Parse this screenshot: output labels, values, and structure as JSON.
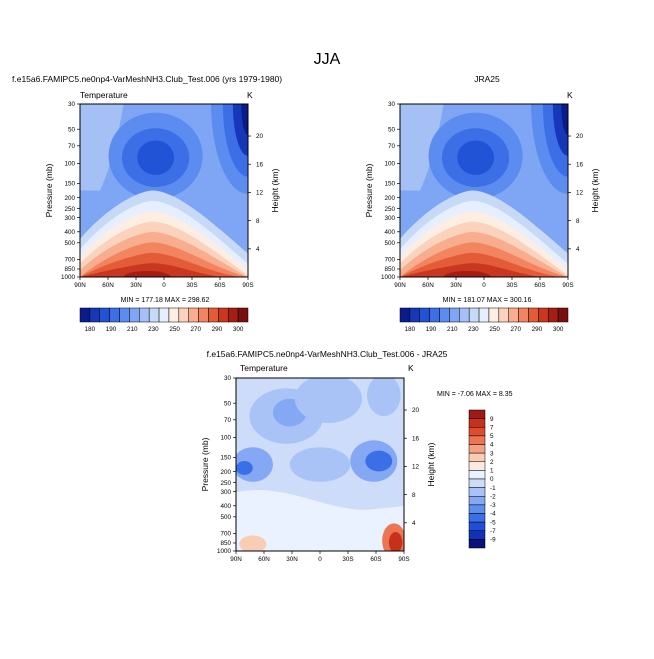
{
  "figure_title": "JJA",
  "colors": {
    "frame": "#000000",
    "background": "#ffffff",
    "abs_palette": [
      "#0a1c8c",
      "#1637b8",
      "#2153d6",
      "#3c6fe6",
      "#5c8cf0",
      "#7fa6f4",
      "#a4c0f5",
      "#c8d9f8",
      "#e6efff",
      "#fdeee4",
      "#fbd3bd",
      "#f8ad8f",
      "#f2855f",
      "#e35b37",
      "#c9381e",
      "#a51e16",
      "#7b0f0c"
    ],
    "diff_palette": [
      "#08127a",
      "#1231b6",
      "#1f4fd6",
      "#3a6fe8",
      "#5e8df0",
      "#84a8f4",
      "#a9c3f7",
      "#cddcf8",
      "#eaf1ff",
      "#fde9df",
      "#f9cdb4",
      "#f4a184",
      "#ec7553",
      "#de4c2e",
      "#c5311b",
      "#a01914"
    ]
  },
  "charts": {
    "left": {
      "left_string": "f.e15a6.FAMIPC5.ne0np4-VarMeshNH3.Club_Test.006 (yrs 1979-1980)",
      "var_label": "Temperature",
      "units": "K",
      "stats": "MIN = 177.18  MAX = 298.62"
    },
    "right": {
      "center_string": "JRA25",
      "var_label": "",
      "units": "K",
      "stats": "MIN = 181.07  MAX = 300.16"
    },
    "diff": {
      "center_string": "f.e15a6.FAMIPC5.ne0np4-VarMeshNH3.Club_Test.006 - JRA25",
      "var_label": "Temperature",
      "units": "K",
      "stats": "MIN = -7.06  MAX =  8.35"
    }
  },
  "chart_data": [
    {
      "type": "heatmap",
      "title": "f.e15a6.FAMIPC5.ne0np4-VarMeshNH3.Club_Test.006 (yrs 1979-1980)",
      "subtitle": "Temperature",
      "units": "K",
      "xlabel": "",
      "ylabel": "Pressure (mb)",
      "ylabel_right": "Height (km)",
      "x_ticks": [
        "90N",
        "60N",
        "30N",
        "0",
        "30S",
        "60S",
        "90S"
      ],
      "y_ticks": [
        30,
        50,
        70,
        100,
        150,
        200,
        250,
        300,
        400,
        500,
        700,
        850,
        1000
      ],
      "y_scale": "log",
      "y_range": [
        1000,
        30
      ],
      "height_ticks_km": [
        4,
        8,
        12,
        16,
        20
      ],
      "colorbar_levels": [
        180,
        190,
        210,
        230,
        250,
        270,
        290,
        300
      ],
      "min": 177.18,
      "max": 298.62
    },
    {
      "type": "heatmap",
      "title": "JRA25",
      "units": "K",
      "xlabel": "",
      "ylabel": "Pressure (mb)",
      "ylabel_right": "Height (km)",
      "x_ticks": [
        "90N",
        "60N",
        "30N",
        "0",
        "30S",
        "60S",
        "90S"
      ],
      "y_ticks": [
        30,
        50,
        70,
        100,
        150,
        200,
        250,
        300,
        400,
        500,
        700,
        850,
        1000
      ],
      "y_scale": "log",
      "y_range": [
        1000,
        30
      ],
      "height_ticks_km": [
        4,
        8,
        12,
        16,
        20
      ],
      "colorbar_levels": [
        180,
        190,
        210,
        230,
        250,
        270,
        290,
        300
      ],
      "min": 181.07,
      "max": 300.16
    },
    {
      "type": "heatmap",
      "title": "f.e15a6.FAMIPC5.ne0np4-VarMeshNH3.Club_Test.006 - JRA25",
      "subtitle": "Temperature",
      "units": "K",
      "xlabel": "",
      "ylabel": "Pressure (mb)",
      "ylabel_right": "Height (km)",
      "x_ticks": [
        "90N",
        "60N",
        "30N",
        "0",
        "30S",
        "60S",
        "90S"
      ],
      "y_ticks": [
        30,
        50,
        70,
        100,
        150,
        200,
        250,
        300,
        400,
        500,
        700,
        850,
        1000
      ],
      "y_scale": "log",
      "y_range": [
        1000,
        30
      ],
      "height_ticks_km": [
        4,
        8,
        12,
        16,
        20
      ],
      "colorbar_levels": [
        9,
        7,
        5,
        4,
        3,
        2,
        1,
        0,
        -1,
        -2,
        -3,
        -4,
        -5,
        -7,
        -9
      ],
      "min": -7.06,
      "max": 8.35
    }
  ]
}
